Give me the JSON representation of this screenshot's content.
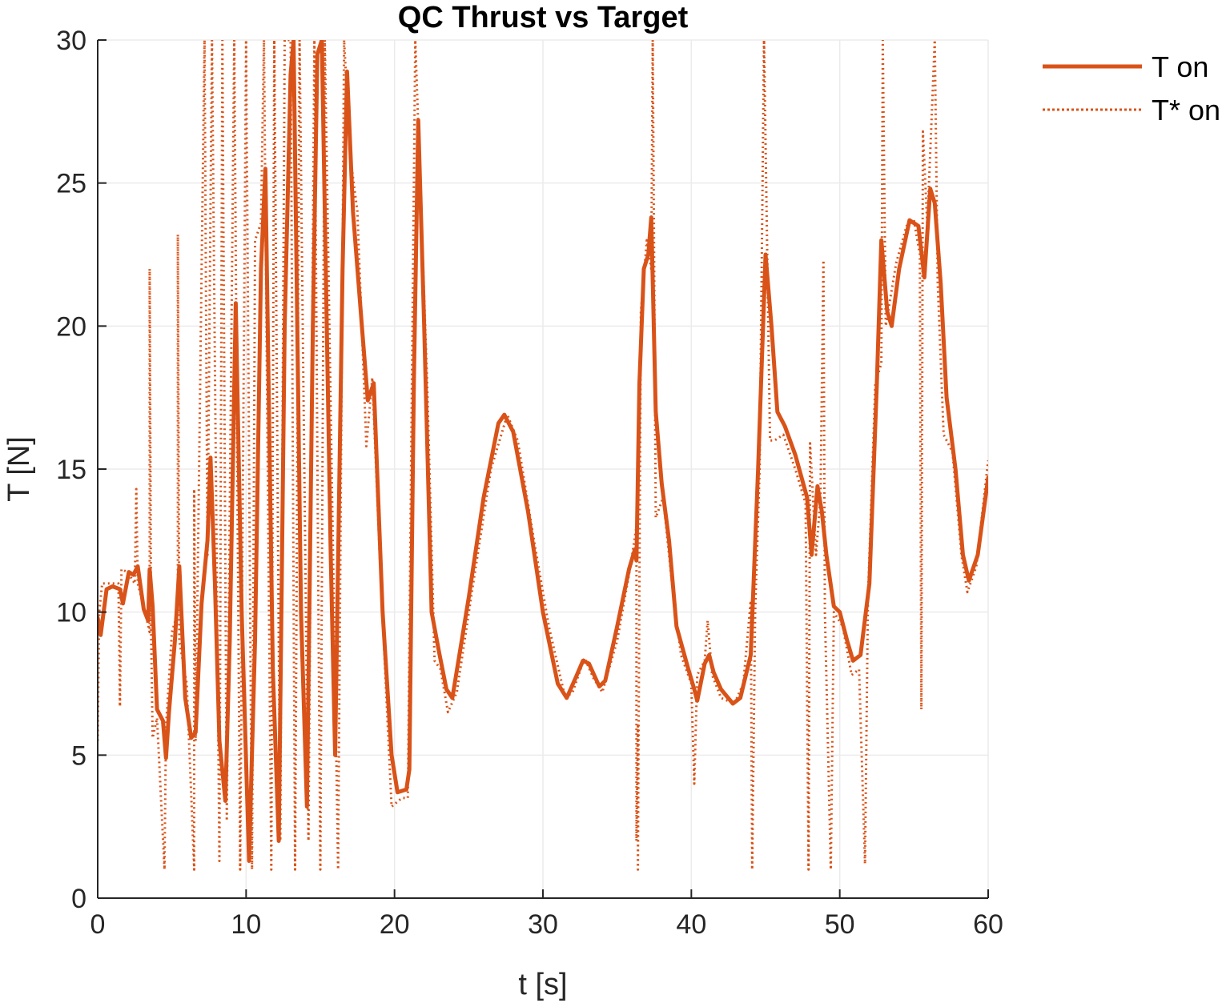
{
  "chart_data": {
    "type": "line",
    "title": "QC Thrust vs Target",
    "xlabel": "t [s]",
    "ylabel": "T [N]",
    "xlim": [
      0,
      60
    ],
    "ylim": [
      0,
      30
    ],
    "xticks": [
      0,
      10,
      20,
      30,
      40,
      50,
      60
    ],
    "yticks": [
      0,
      5,
      10,
      15,
      20,
      25,
      30
    ],
    "grid": true,
    "legend_position": "outside-top-right",
    "series": [
      {
        "name": "T on",
        "style": "solid",
        "color": "#D95319",
        "points": [
          [
            0,
            9.8
          ],
          [
            0.2,
            9.2
          ],
          [
            0.6,
            10.8
          ],
          [
            1.0,
            10.9
          ],
          [
            1.5,
            10.8
          ],
          [
            1.7,
            10.3
          ],
          [
            2.1,
            11.4
          ],
          [
            2.4,
            11.3
          ],
          [
            2.7,
            11.6
          ],
          [
            3.1,
            10.1
          ],
          [
            3.4,
            9.7
          ],
          [
            3.5,
            11.5
          ],
          [
            3.7,
            10.2
          ],
          [
            4.0,
            6.6
          ],
          [
            4.4,
            6.2
          ],
          [
            4.6,
            4.9
          ],
          [
            4.8,
            6.5
          ],
          [
            5.2,
            9.0
          ],
          [
            5.5,
            11.6
          ],
          [
            5.9,
            7.0
          ],
          [
            6.3,
            5.6
          ],
          [
            6.6,
            5.8
          ],
          [
            7.0,
            10.3
          ],
          [
            7.4,
            12.5
          ],
          [
            7.6,
            15.4
          ],
          [
            7.9,
            11.0
          ],
          [
            8.2,
            5.5
          ],
          [
            8.6,
            3.4
          ],
          [
            8.9,
            9.0
          ],
          [
            9.3,
            20.8
          ],
          [
            9.7,
            10.0
          ],
          [
            10.2,
            1.3
          ],
          [
            10.6,
            9.0
          ],
          [
            11.0,
            22.0
          ],
          [
            11.3,
            25.5
          ],
          [
            11.8,
            8.0
          ],
          [
            12.2,
            2.0
          ],
          [
            12.6,
            20.0
          ],
          [
            13.0,
            28.8
          ],
          [
            13.2,
            30.0
          ],
          [
            13.7,
            10.0
          ],
          [
            14.1,
            3.2
          ],
          [
            14.5,
            20.0
          ],
          [
            14.8,
            29.5
          ],
          [
            15.1,
            30.0
          ],
          [
            15.7,
            12.0
          ],
          [
            16.0,
            5.0
          ],
          [
            16.5,
            22.0
          ],
          [
            16.8,
            28.9
          ],
          [
            17.2,
            24.0
          ],
          [
            17.8,
            20.0
          ],
          [
            18.2,
            17.4
          ],
          [
            18.6,
            18.0
          ],
          [
            19.2,
            10.0
          ],
          [
            19.8,
            5.0
          ],
          [
            20.2,
            3.7
          ],
          [
            20.8,
            3.8
          ],
          [
            21.0,
            4.5
          ],
          [
            21.3,
            18.0
          ],
          [
            21.6,
            27.2
          ],
          [
            22.0,
            20.0
          ],
          [
            22.5,
            10.0
          ],
          [
            23.0,
            8.6
          ],
          [
            23.5,
            7.3
          ],
          [
            23.9,
            7.0
          ],
          [
            25.0,
            10.5
          ],
          [
            26.0,
            14.0
          ],
          [
            27.0,
            16.6
          ],
          [
            27.4,
            16.9
          ],
          [
            28.0,
            16.3
          ],
          [
            29.0,
            13.5
          ],
          [
            30.0,
            10.0
          ],
          [
            31.0,
            7.5
          ],
          [
            31.6,
            7.0
          ],
          [
            32.2,
            7.7
          ],
          [
            32.7,
            8.3
          ],
          [
            33.1,
            8.2
          ],
          [
            33.8,
            7.4
          ],
          [
            34.2,
            7.6
          ],
          [
            35.0,
            9.5
          ],
          [
            35.8,
            11.5
          ],
          [
            36.2,
            12.2
          ],
          [
            36.3,
            11.8
          ],
          [
            36.5,
            18.0
          ],
          [
            36.8,
            22.0
          ],
          [
            37.1,
            22.5
          ],
          [
            37.3,
            23.8
          ],
          [
            37.6,
            17.0
          ],
          [
            38.0,
            14.5
          ],
          [
            38.5,
            12.5
          ],
          [
            39.0,
            9.5
          ],
          [
            39.8,
            8.0
          ],
          [
            40.2,
            7.3
          ],
          [
            40.4,
            6.9
          ],
          [
            40.9,
            8.2
          ],
          [
            41.2,
            8.5
          ],
          [
            41.5,
            7.9
          ],
          [
            42.0,
            7.3
          ],
          [
            42.8,
            6.8
          ],
          [
            43.3,
            7.0
          ],
          [
            44.0,
            8.5
          ],
          [
            44.5,
            15.0
          ],
          [
            45.0,
            22.5
          ],
          [
            45.4,
            20.0
          ],
          [
            45.8,
            17.0
          ],
          [
            46.3,
            16.5
          ],
          [
            47.0,
            15.5
          ],
          [
            47.8,
            14.0
          ],
          [
            48.1,
            12.0
          ],
          [
            48.5,
            14.4
          ],
          [
            48.8,
            13.5
          ],
          [
            49.1,
            12.0
          ],
          [
            49.6,
            10.2
          ],
          [
            50.0,
            10.0
          ],
          [
            50.5,
            9.0
          ],
          [
            50.9,
            8.3
          ],
          [
            51.4,
            8.5
          ],
          [
            52.0,
            11.0
          ],
          [
            52.5,
            18.0
          ],
          [
            52.8,
            23.0
          ],
          [
            53.2,
            20.5
          ],
          [
            53.5,
            20.0
          ],
          [
            54.0,
            22.0
          ],
          [
            54.7,
            23.7
          ],
          [
            55.3,
            23.5
          ],
          [
            55.7,
            21.7
          ],
          [
            56.1,
            24.8
          ],
          [
            56.4,
            24.3
          ],
          [
            56.8,
            21.5
          ],
          [
            57.2,
            17.5
          ],
          [
            57.8,
            15.0
          ],
          [
            58.3,
            12.0
          ],
          [
            58.7,
            11.1
          ],
          [
            59.3,
            12.0
          ],
          [
            60.0,
            14.7
          ]
        ]
      },
      {
        "name": "T* on",
        "style": "dotted",
        "color": "#D95319",
        "points": [
          [
            0,
            5.5
          ],
          [
            0.1,
            10.0
          ],
          [
            0.3,
            11.0
          ],
          [
            0.9,
            11.0
          ],
          [
            1.4,
            11.0
          ],
          [
            1.5,
            6.7
          ],
          [
            1.6,
            11.5
          ],
          [
            2.0,
            11.4
          ],
          [
            2.5,
            11.0
          ],
          [
            2.6,
            14.3
          ],
          [
            2.7,
            11.0
          ],
          [
            3.2,
            10.0
          ],
          [
            3.5,
            9.3
          ],
          [
            3.5,
            22.0
          ],
          [
            3.6,
            9.3
          ],
          [
            3.7,
            5.6
          ],
          [
            4.0,
            6.3
          ],
          [
            4.5,
            1.0
          ],
          [
            4.6,
            6.0
          ],
          [
            5.0,
            9.3
          ],
          [
            5.4,
            10.0
          ],
          [
            5.4,
            23.2
          ],
          [
            5.5,
            9.0
          ],
          [
            6.0,
            7.5
          ],
          [
            6.5,
            1.0
          ],
          [
            6.5,
            14.3
          ],
          [
            6.6,
            5.5
          ],
          [
            7.2,
            30.0
          ],
          [
            7.4,
            12.0
          ],
          [
            7.7,
            30.0
          ],
          [
            8.2,
            1.3
          ],
          [
            8.4,
            30.0
          ],
          [
            8.7,
            2.7
          ],
          [
            9.2,
            30.0
          ],
          [
            9.6,
            1.0
          ],
          [
            10.0,
            30.0
          ],
          [
            10.4,
            1.0
          ],
          [
            10.6,
            23.0
          ],
          [
            11.0,
            23.6
          ],
          [
            11.2,
            30.0
          ],
          [
            11.7,
            1.0
          ],
          [
            11.9,
            30.0
          ],
          [
            12.3,
            2.0
          ],
          [
            12.6,
            30.0
          ],
          [
            13.0,
            30.0
          ],
          [
            13.3,
            1.0
          ],
          [
            13.6,
            30.0
          ],
          [
            14.2,
            2.0
          ],
          [
            14.6,
            30.0
          ],
          [
            15.0,
            1.0
          ],
          [
            15.3,
            30.0
          ],
          [
            16.2,
            1.0
          ],
          [
            16.6,
            30.0
          ],
          [
            17.0,
            26.0
          ],
          [
            17.5,
            24.0
          ],
          [
            18.1,
            15.8
          ],
          [
            18.5,
            18.2
          ],
          [
            19.0,
            12.0
          ],
          [
            19.8,
            3.2
          ],
          [
            20.5,
            3.5
          ],
          [
            20.9,
            3.5
          ],
          [
            21.4,
            30.0
          ],
          [
            21.6,
            27.0
          ],
          [
            22.2,
            18.0
          ],
          [
            22.7,
            8.3
          ],
          [
            23.1,
            8.0
          ],
          [
            23.6,
            6.5
          ],
          [
            24.2,
            7.2
          ],
          [
            25.3,
            11.0
          ],
          [
            26.5,
            15.0
          ],
          [
            27.6,
            16.9
          ],
          [
            28.3,
            16.0
          ],
          [
            29.4,
            12.5
          ],
          [
            30.4,
            9.5
          ],
          [
            31.5,
            7.0
          ],
          [
            32.0,
            7.2
          ],
          [
            32.8,
            8.4
          ],
          [
            33.4,
            7.7
          ],
          [
            34.0,
            7.2
          ],
          [
            35.0,
            9.0
          ],
          [
            35.9,
            11.6
          ],
          [
            36.3,
            13.0
          ],
          [
            36.3,
            2.0
          ],
          [
            36.4,
            6.1
          ],
          [
            36.4,
            1.0
          ],
          [
            36.6,
            20.5
          ],
          [
            37.0,
            23.0
          ],
          [
            37.3,
            22.0
          ],
          [
            37.4,
            30.0
          ],
          [
            37.6,
            13.3
          ],
          [
            38.1,
            14.0
          ],
          [
            38.7,
            11.0
          ],
          [
            39.3,
            8.5
          ],
          [
            40.0,
            7.5
          ],
          [
            40.2,
            4.0
          ],
          [
            40.4,
            7.8
          ],
          [
            40.9,
            8.3
          ],
          [
            41.1,
            9.7
          ],
          [
            41.4,
            7.8
          ],
          [
            42.0,
            7.0
          ],
          [
            42.9,
            6.8
          ],
          [
            43.5,
            7.5
          ],
          [
            44.0,
            10.4
          ],
          [
            44.1,
            1.0
          ],
          [
            44.3,
            10.0
          ],
          [
            44.6,
            15.0
          ],
          [
            44.9,
            30.0
          ],
          [
            45.3,
            16.0
          ],
          [
            45.6,
            16.0
          ],
          [
            46.2,
            16.2
          ],
          [
            47.0,
            15.0
          ],
          [
            47.7,
            13.8
          ],
          [
            47.9,
            1.0
          ],
          [
            48.0,
            15.9
          ],
          [
            48.4,
            12.0
          ],
          [
            48.7,
            14.0
          ],
          [
            48.9,
            22.3
          ],
          [
            49.0,
            10.0
          ],
          [
            49.4,
            1.0
          ],
          [
            49.6,
            10.0
          ],
          [
            50.2,
            9.5
          ],
          [
            50.8,
            7.8
          ],
          [
            51.3,
            8.0
          ],
          [
            51.7,
            1.2
          ],
          [
            51.9,
            10.5
          ],
          [
            52.4,
            18.0
          ],
          [
            52.8,
            18.7
          ],
          [
            52.9,
            30.0
          ],
          [
            53.1,
            20.0
          ],
          [
            53.8,
            22.2
          ],
          [
            54.5,
            23.5
          ],
          [
            55.0,
            23.7
          ],
          [
            55.4,
            22.5
          ],
          [
            55.5,
            6.6
          ],
          [
            55.6,
            26.8
          ],
          [
            55.9,
            23.5
          ],
          [
            56.4,
            30.0
          ],
          [
            56.6,
            21.5
          ],
          [
            57.0,
            16.2
          ],
          [
            57.6,
            15.6
          ],
          [
            58.2,
            12.0
          ],
          [
            58.6,
            10.7
          ],
          [
            59.2,
            11.6
          ],
          [
            60.0,
            15.3
          ]
        ]
      }
    ]
  }
}
